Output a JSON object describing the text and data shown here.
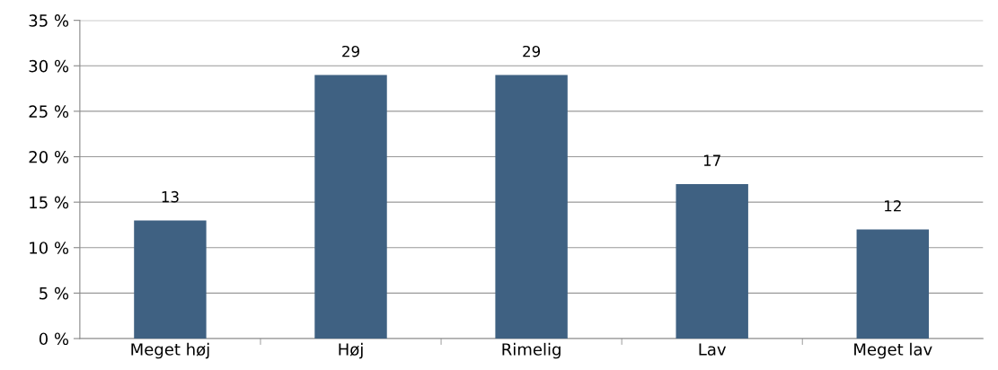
{
  "chart_data": {
    "type": "bar",
    "categories": [
      "Meget høj",
      "Høj",
      "Rimelig",
      "Lav",
      "Meget lav"
    ],
    "values": [
      13,
      29,
      29,
      17,
      12
    ],
    "color": "#3f6182",
    "ylim": [
      0,
      35
    ],
    "yticks": [
      {
        "value": 0,
        "label": "0 %"
      },
      {
        "value": 5,
        "label": "5 %"
      },
      {
        "value": 10,
        "label": "10 %"
      },
      {
        "value": 15,
        "label": "15 %"
      },
      {
        "value": 20,
        "label": "20 %"
      },
      {
        "value": 25,
        "label": "25 %"
      },
      {
        "value": 30,
        "label": "30 %"
      },
      {
        "value": 35,
        "label": "35 %"
      }
    ],
    "grid": "y",
    "data_labels": true
  }
}
